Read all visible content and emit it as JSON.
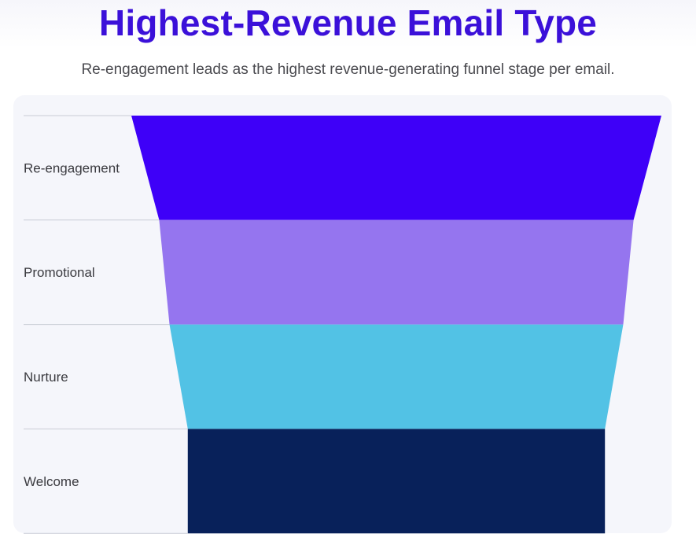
{
  "header": {
    "title": "Highest-Revenue Email Type",
    "subtitle": "Re-engagement leads as the highest revenue-generating funnel stage per email."
  },
  "chart_data": {
    "type": "funnel",
    "title": "Highest-Revenue Email Type",
    "subtitle": "Re-engagement leads as the highest revenue-generating funnel stage per email.",
    "stages": [
      {
        "label": "Re-engagement",
        "value": 100,
        "color": "#3e00f8"
      },
      {
        "label": "Promotional",
        "value": 89.5,
        "color": "#9575ef"
      },
      {
        "label": "Nurture",
        "value": 85.6,
        "color": "#52c2e5"
      },
      {
        "label": "Welcome",
        "value": 78.7,
        "color": "#08215a"
      }
    ],
    "divider_color": "#c9ccd6"
  }
}
